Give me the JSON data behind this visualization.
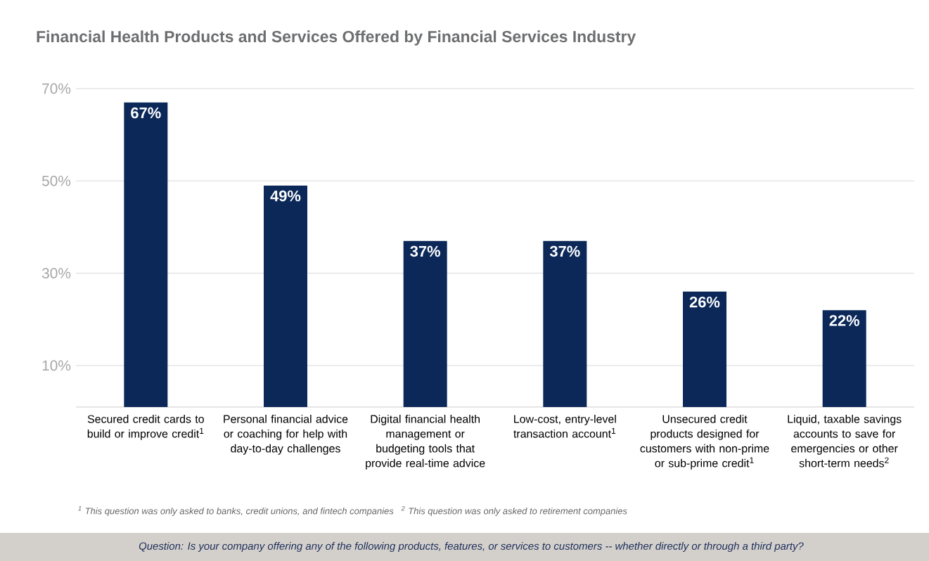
{
  "chart_data": {
    "type": "bar",
    "title": "Financial Health Products and Services Offered by Financial Services Industry",
    "categories": [
      "Secured credit cards to build or improve credit$^{1}$",
      "Personal financial advice or coaching for help with day-to-day challenges",
      "Digital financial health management or budgeting tools that provide real-time advice",
      "Low-cost, entry-level transaction account$^{1}$",
      "Unsecured credit products designed for customers with non-prime or sub-prime credit$^{1}$",
      "Liquid, taxable savings accounts to save for emergencies or other short-term needs$^{2}$"
    ],
    "values": [
      67,
      49,
      37,
      37,
      26,
      22
    ],
    "value_labels": [
      "67%",
      "49%",
      "37%",
      "37%",
      "26%",
      "22%"
    ],
    "color": "#0b2859",
    "ylim": [
      1,
      70
    ],
    "yticks": [
      {
        "value": 10,
        "label": "10%"
      },
      {
        "value": 30,
        "label": "30%"
      },
      {
        "value": 50,
        "label": "50%"
      },
      {
        "value": 70,
        "label": "70%"
      }
    ],
    "grid": "y",
    "annotations": [
      "$^{1}$ This question was only asked to banks, credit unions, and fintech companies   $^{2}$ This question was only asked to retirement companies",
      "Question: Is your company offering any of the following products, features, or services to customers -- whether directly or through a third party?"
    ]
  }
}
